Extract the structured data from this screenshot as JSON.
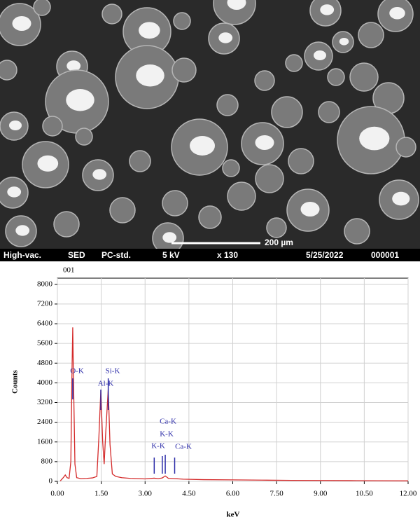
{
  "image": {
    "scale_bar": "200 µm",
    "info": [
      "High-vac.",
      "SED",
      "PC-std.",
      "5 kV",
      "x 130",
      "5/25/2022",
      "000001"
    ]
  },
  "chart_data": {
    "type": "line",
    "title": "001",
    "x_label": "keV",
    "y_label": "Counts",
    "xlim": [
      0,
      12
    ],
    "ylim": [
      0,
      8250
    ],
    "xticks": [
      {
        "value": 0,
        "label": "0.00"
      },
      {
        "value": 1.5,
        "label": "1.50"
      },
      {
        "value": 3,
        "label": "3.00"
      },
      {
        "value": 4.5,
        "label": "4.50"
      },
      {
        "value": 6,
        "label": "6.00"
      },
      {
        "value": 7.5,
        "label": "7.50"
      },
      {
        "value": 9,
        "label": "9.00"
      },
      {
        "value": 10.5,
        "label": "10.50"
      },
      {
        "value": 12,
        "label": "12.00"
      }
    ],
    "yticks": [
      0,
      800,
      1600,
      2400,
      3200,
      4000,
      4800,
      5600,
      6400,
      7200,
      8000
    ],
    "grid": true,
    "series": [
      {
        "color": "#d42a2a",
        "x": [
          0.1,
          0.2,
          0.27,
          0.33,
          0.4,
          0.46,
          0.5,
          0.525,
          0.55,
          0.6,
          0.66,
          0.8,
          1.0,
          1.2,
          1.35,
          1.42,
          1.486,
          1.55,
          1.6,
          1.65,
          1.74,
          1.8,
          1.88,
          2.0,
          2.2,
          2.5,
          3.0,
          3.31,
          3.45,
          3.59,
          3.69,
          3.8,
          4.01,
          4.3,
          5.0,
          6.0,
          7.0,
          8.0,
          9.0,
          10.0,
          11.0,
          12.0
        ],
        "values": [
          20,
          150,
          260,
          150,
          120,
          800,
          4500,
          6250,
          4200,
          700,
          150,
          110,
          120,
          140,
          200,
          1800,
          3700,
          1600,
          700,
          1900,
          3750,
          1500,
          300,
          200,
          150,
          120,
          100,
          130,
          110,
          140,
          220,
          120,
          110,
          90,
          70,
          60,
          50,
          40,
          35,
          30,
          25,
          20
        ]
      }
    ],
    "annotations": [
      {
        "label": "O-K",
        "x": 0.525
      },
      {
        "label": "Al-K",
        "x": 1.486
      },
      {
        "label": "Si-K",
        "x": 1.74
      },
      {
        "label": "K-K",
        "x": 3.313
      },
      {
        "label": "K-K",
        "x": 3.589
      },
      {
        "label": "Ca-K",
        "x": 3.69
      },
      {
        "label": "Ca-K",
        "x": 4.012
      }
    ],
    "annotation_color": "#2b2ba8"
  }
}
